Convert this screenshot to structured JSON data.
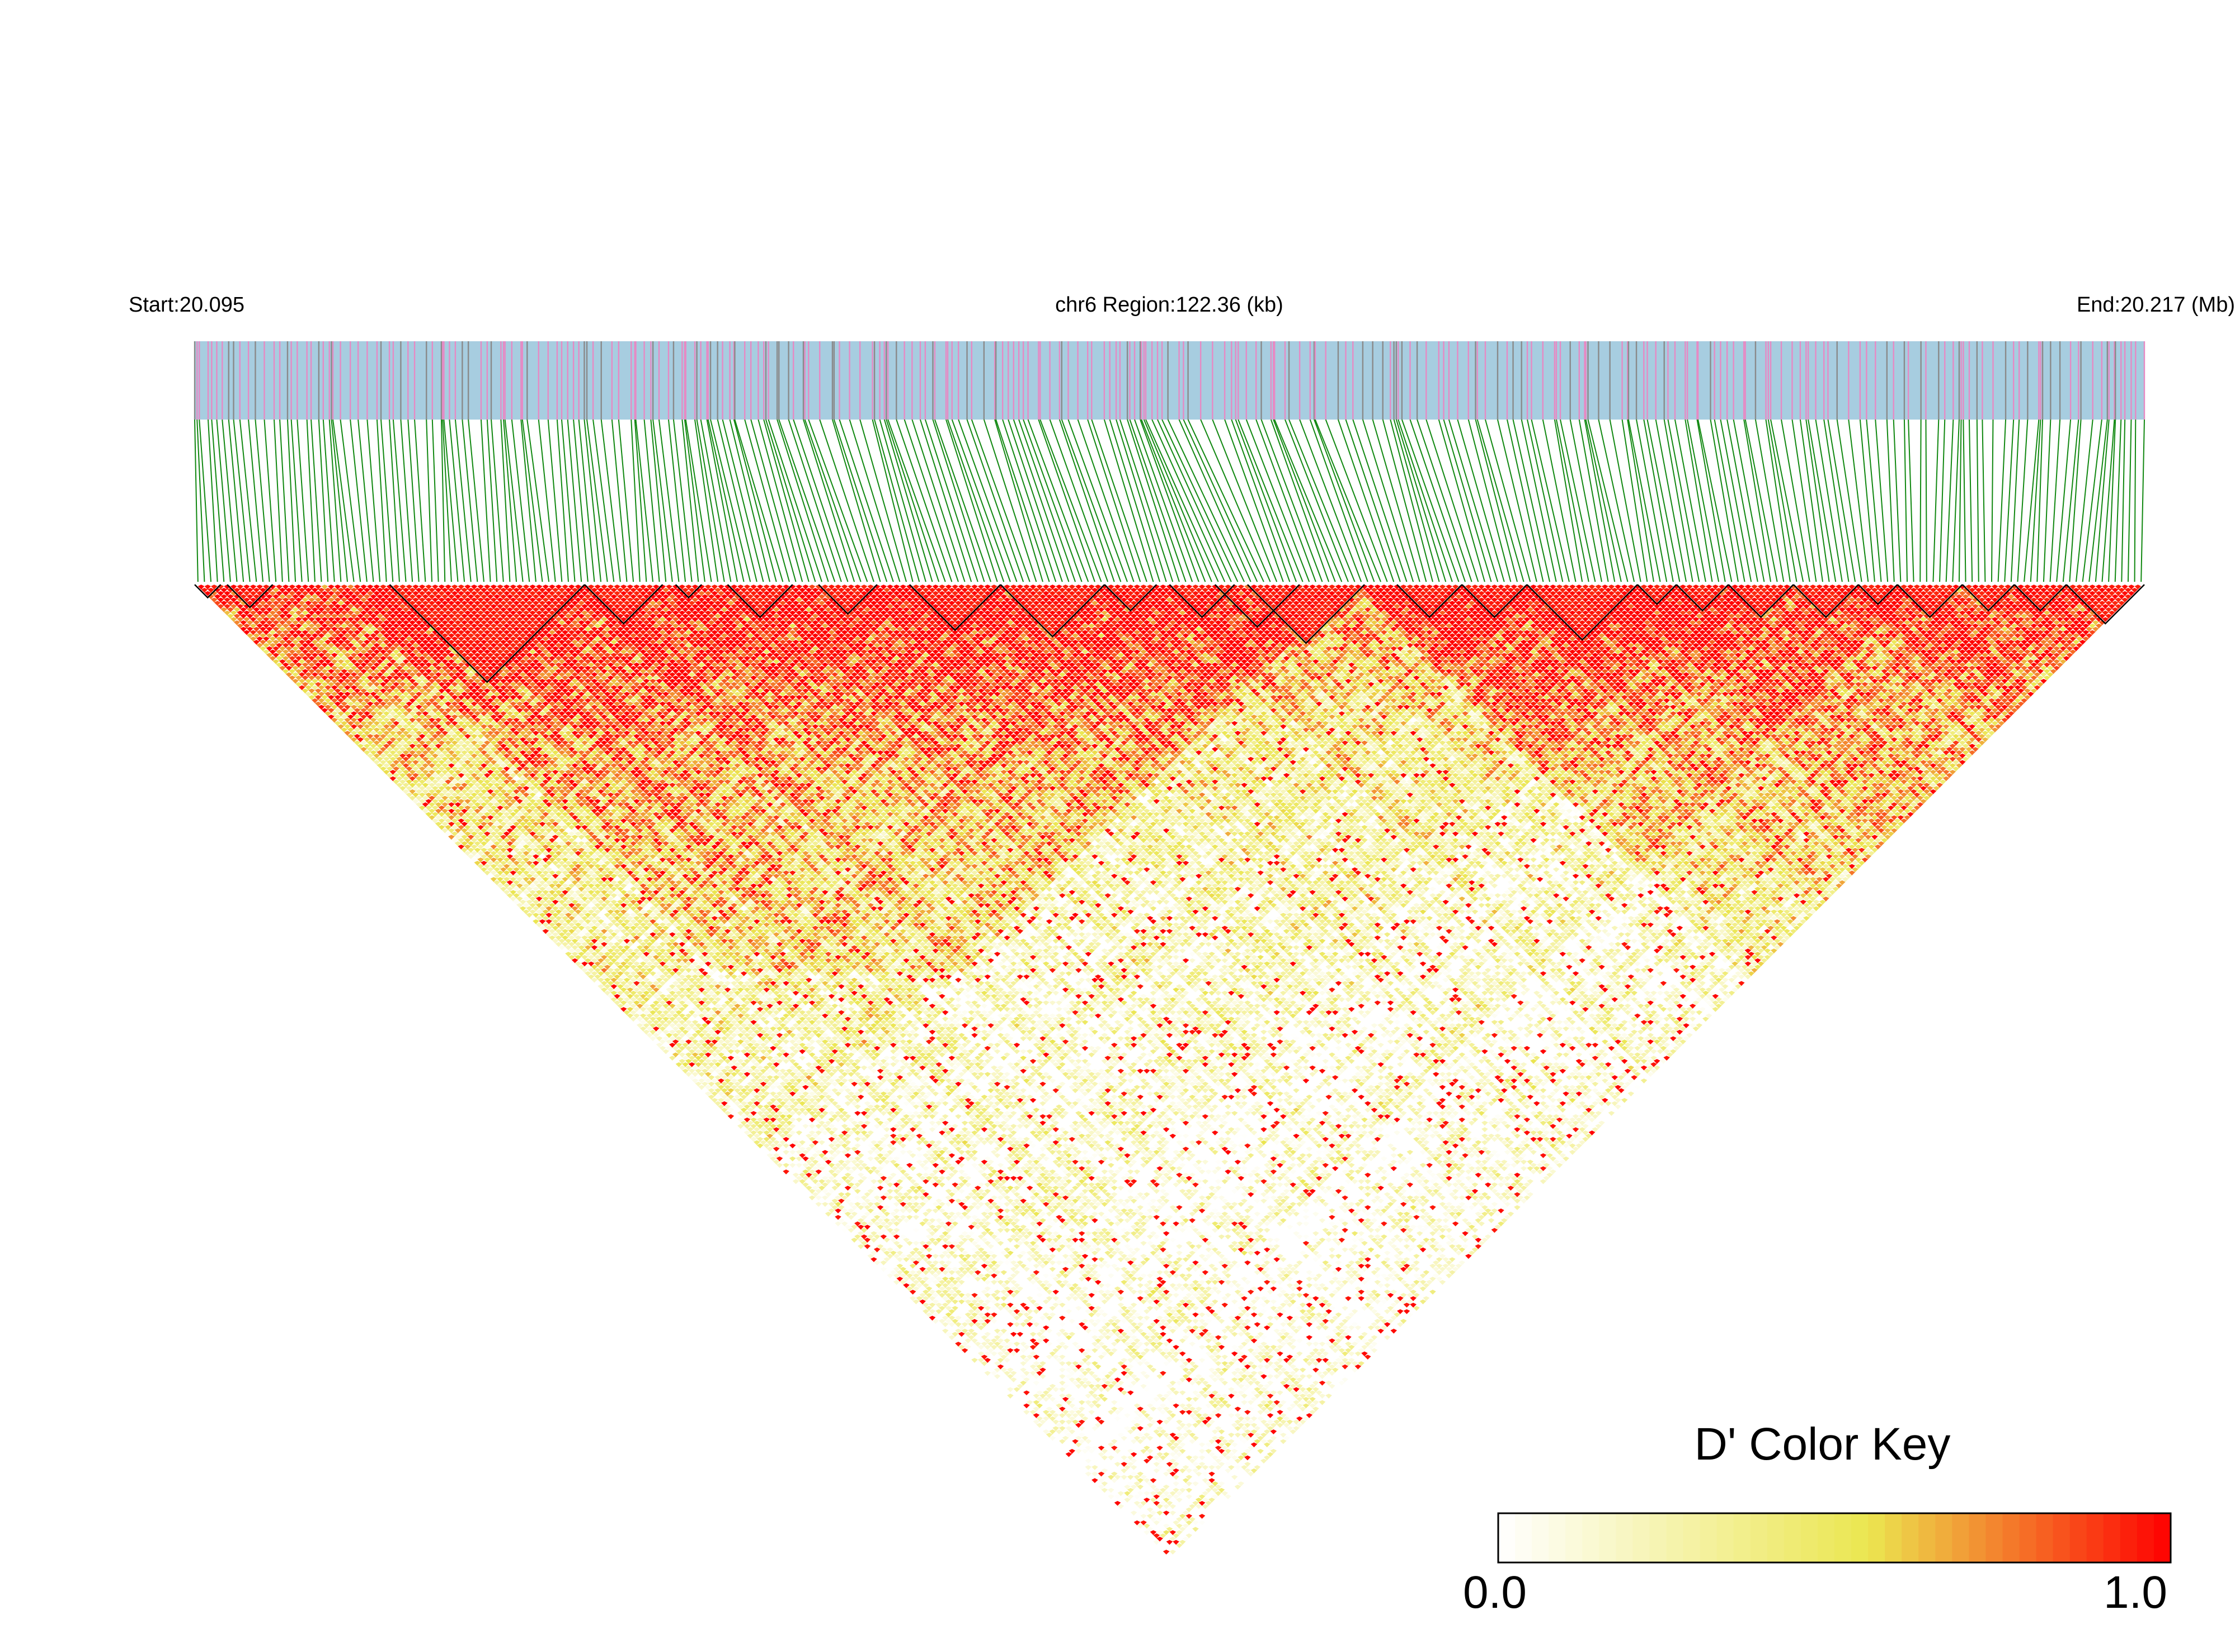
{
  "header": {
    "start_label": "Start:20.095",
    "region_label": "chr6 Region:122.36 (kb)",
    "end_label": "End:20.217 (Mb)"
  },
  "colors": {
    "track_bg": "#a7cde0",
    "snp_tick_pink": "#e68ac4",
    "snp_tick_gray": "#8a8a8a",
    "connector": "#118811",
    "low": "#ffffff",
    "mid": "#ebe650",
    "high": "#ff0000",
    "block_outline": "#000000"
  },
  "chart_data": {
    "type": "heatmap",
    "description_kind": "linkage-disequilibrium triangle",
    "chromosome": "chr6",
    "region_start_mb": 20.095,
    "region_end_mb": 20.217,
    "region_length_kb": 122.36,
    "snp_count": 300,
    "value_name": "D'",
    "value_range": [
      0.0,
      1.0
    ],
    "haplotype_blocks_snp_ranges": [
      [
        0,
        4
      ],
      [
        5,
        12
      ],
      [
        30,
        60
      ],
      [
        60,
        72
      ],
      [
        74,
        78
      ],
      [
        82,
        92
      ],
      [
        96,
        105
      ],
      [
        110,
        124
      ],
      [
        124,
        140
      ],
      [
        140,
        148
      ],
      [
        150,
        160
      ],
      [
        157,
        170
      ],
      [
        162,
        180
      ],
      [
        185,
        195
      ],
      [
        195,
        205
      ],
      [
        205,
        222
      ],
      [
        222,
        228
      ],
      [
        228,
        236
      ],
      [
        236,
        246
      ],
      [
        246,
        256
      ],
      [
        256,
        262
      ],
      [
        262,
        272
      ],
      [
        272,
        280
      ],
      [
        280,
        288
      ],
      [
        288,
        300
      ]
    ]
  },
  "color_key": {
    "title": "D' Color Key",
    "min_label": "0.0",
    "max_label": "1.0",
    "steps": 40
  }
}
